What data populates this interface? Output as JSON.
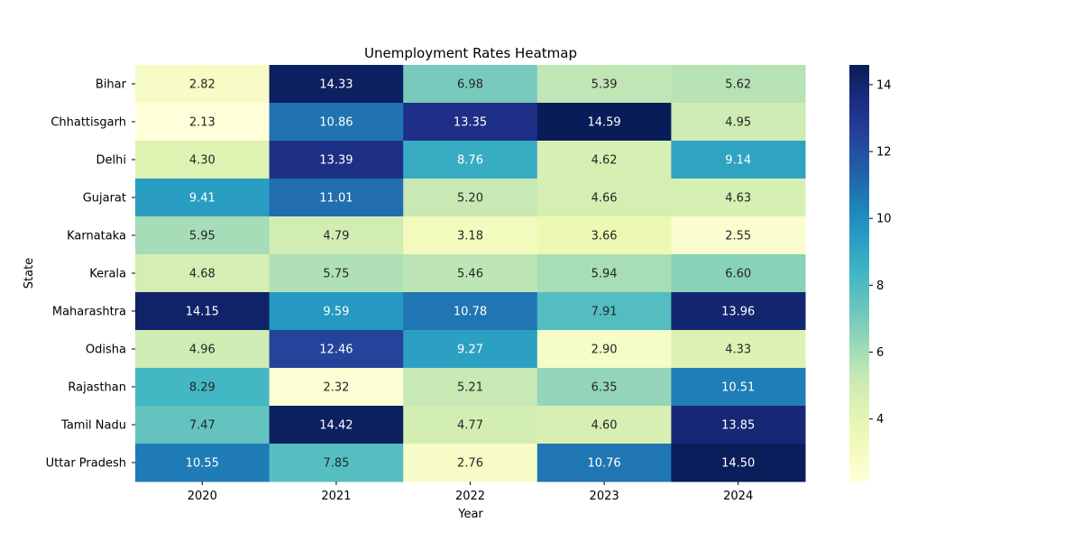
{
  "chart_data": {
    "type": "heatmap",
    "title": "Unemployment Rates Heatmap",
    "xlabel": "Year",
    "ylabel": "State",
    "x": [
      "2020",
      "2021",
      "2022",
      "2023",
      "2024"
    ],
    "y": [
      "Bihar",
      "Chhattisgarh",
      "Delhi",
      "Gujarat",
      "Karnataka",
      "Kerala",
      "Maharashtra",
      "Odisha",
      "Rajasthan",
      "Tamil Nadu",
      "Uttar Pradesh"
    ],
    "values": [
      [
        2.82,
        14.33,
        6.98,
        5.39,
        5.62
      ],
      [
        2.13,
        10.86,
        13.35,
        14.59,
        4.95
      ],
      [
        4.3,
        13.39,
        8.76,
        4.62,
        9.14
      ],
      [
        9.41,
        11.01,
        5.2,
        4.66,
        4.63
      ],
      [
        5.95,
        4.79,
        3.18,
        3.66,
        2.55
      ],
      [
        4.68,
        5.75,
        5.46,
        5.94,
        6.6
      ],
      [
        14.15,
        9.59,
        10.78,
        7.91,
        13.96
      ],
      [
        4.96,
        12.46,
        9.27,
        2.9,
        4.33
      ],
      [
        8.29,
        2.32,
        5.21,
        6.35,
        10.51
      ],
      [
        7.47,
        14.42,
        4.77,
        4.6,
        13.85
      ],
      [
        10.55,
        7.85,
        2.76,
        10.76,
        14.5
      ]
    ],
    "value_format": "2 decimals",
    "colormap": "YlGnBu",
    "colorbar": {
      "vmin": 2.13,
      "vmax": 14.59,
      "ticks": [
        "4",
        "6",
        "8",
        "10",
        "12",
        "14"
      ]
    },
    "grid": false,
    "legend": "colorbar-right"
  }
}
